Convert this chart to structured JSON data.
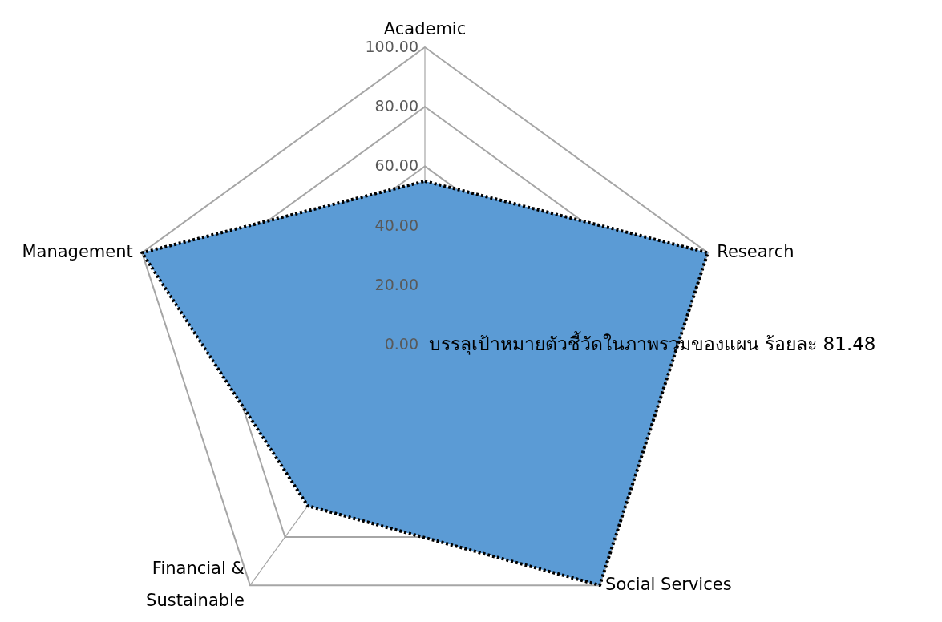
{
  "chart_data": {
    "type": "radar",
    "categories": [
      "Academic",
      "Research",
      "Social Services",
      "Financial & Sustainable",
      "Management"
    ],
    "series": [
      {
        "color": "#5b9bd5",
        "values": [
          55,
          100,
          100,
          67,
          100
        ]
      }
    ],
    "ylim": [
      0,
      100
    ],
    "yticks": [
      {
        "value": 0,
        "label": "0.00"
      },
      {
        "value": 20,
        "label": "20.00"
      },
      {
        "value": 40,
        "label": "40.00"
      },
      {
        "value": 60,
        "label": "60.00"
      },
      {
        "value": 80,
        "label": "80.00"
      },
      {
        "value": 100,
        "label": "100.00"
      }
    ],
    "grid": true,
    "line_style": "dotted",
    "annotations": [
      "บรรลุเป้าหมายตัวชี้วัดในภาพรวมของแผน ร้อยละ 81.48"
    ]
  }
}
